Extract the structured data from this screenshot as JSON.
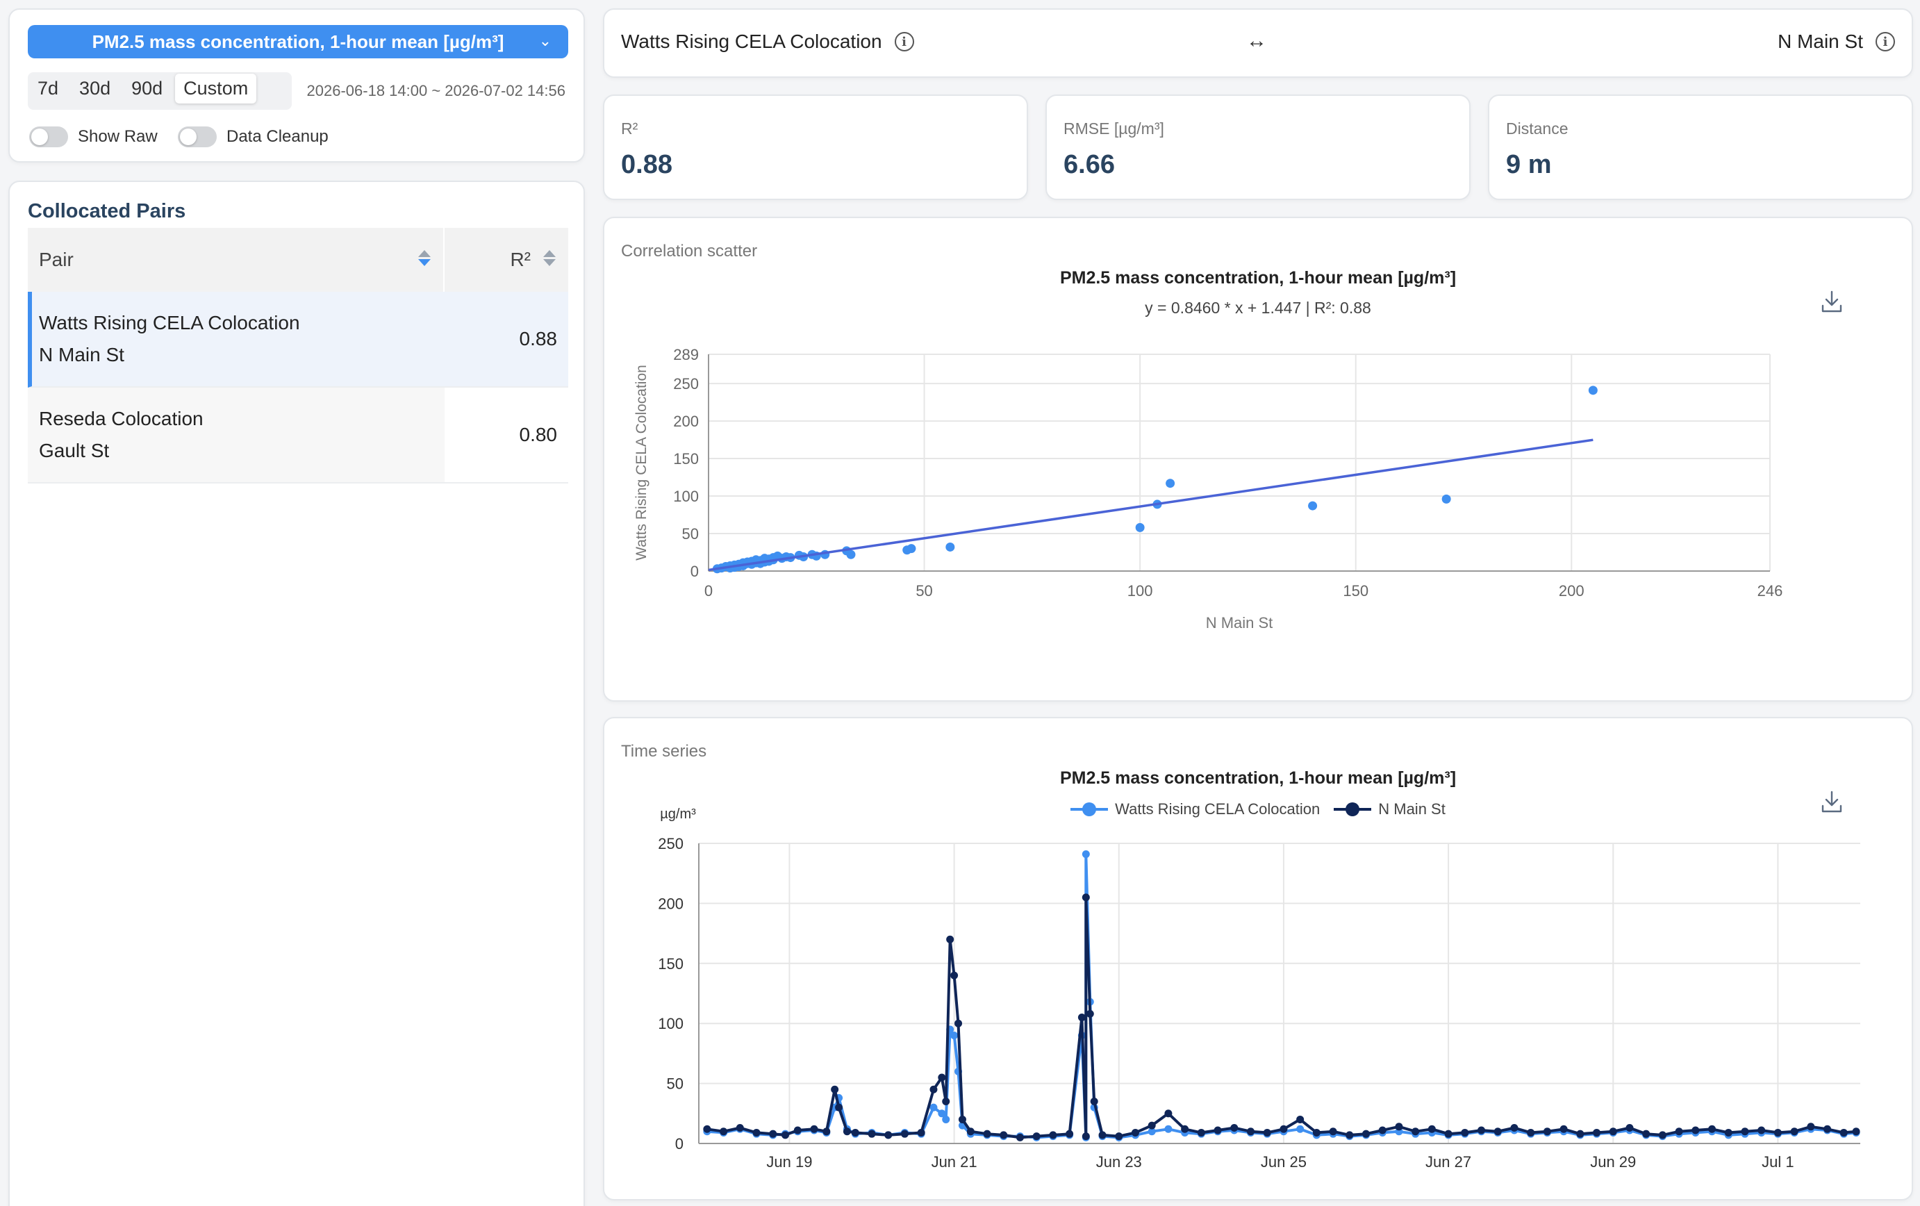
{
  "controls": {
    "metric": "PM2.5 mass concentration, 1-hour mean [µg/m³]",
    "ranges": [
      "7d",
      "30d",
      "90d",
      "Custom"
    ],
    "active_range": "Custom",
    "date_range": "2026-06-18 14:00 ~ 2026-07-02 14:56",
    "show_raw_label": "Show Raw",
    "data_cleanup_label": "Data Cleanup"
  },
  "pairs": {
    "title": "Collocated Pairs",
    "col_pair": "Pair",
    "col_r2": "R²",
    "rows": [
      {
        "a": "Watts Rising CELA Colocation",
        "b": "N Main St",
        "r2": "0.88",
        "selected": true
      },
      {
        "a": "Reseda Colocation",
        "b": "Gault St",
        "r2": "0.80",
        "selected": false
      }
    ]
  },
  "header": {
    "left": "Watts Rising CELA Colocation",
    "arrow": "↔",
    "right": "N Main St"
  },
  "stats": {
    "r2_label": "R²",
    "r2_value": "0.88",
    "rmse_label": "RMSE [µg/m³]",
    "rmse_value": "6.66",
    "dist_label": "Distance",
    "dist_value": "9 m"
  },
  "colors": {
    "series_a": "#3f8ff0",
    "series_b": "#0f2557",
    "fit": "#4a63d6",
    "grid": "#e6e6e6"
  },
  "scatter_card": {
    "label": "Correlation scatter",
    "title": "PM2.5 mass concentration, 1-hour mean [µg/m³]",
    "equation": "y = 0.8460 * x + 1.447 | R²: 0.88"
  },
  "ts_card": {
    "label": "Time series",
    "title": "PM2.5 mass concentration, 1-hour mean [µg/m³]",
    "unit": "µg/m³"
  },
  "chart_data": [
    {
      "type": "scatter",
      "xlabel": "N Main St",
      "ylabel": "Watts Rising CELA Colocation",
      "xlim": [
        0,
        246
      ],
      "ylim": [
        0,
        289
      ],
      "xticks": [
        0,
        50,
        100,
        150,
        200,
        246
      ],
      "yticks": [
        0,
        50,
        100,
        150,
        200,
        250,
        289
      ],
      "fit": {
        "slope": 0.846,
        "intercept": 1.447,
        "x_range": [
          0,
          205
        ]
      },
      "points": [
        [
          205,
          241
        ],
        [
          107,
          117
        ],
        [
          104,
          89
        ],
        [
          100,
          58
        ],
        [
          140,
          87
        ],
        [
          171,
          96
        ],
        [
          56,
          32
        ],
        [
          47,
          30
        ],
        [
          46,
          28
        ],
        [
          33,
          22
        ],
        [
          32,
          27
        ],
        [
          27,
          22
        ],
        [
          25,
          20
        ],
        [
          24,
          22
        ],
        [
          22,
          19
        ],
        [
          21,
          21
        ],
        [
          19,
          18
        ],
        [
          18,
          19
        ],
        [
          17,
          17
        ],
        [
          16,
          20
        ],
        [
          15,
          15
        ],
        [
          15,
          18
        ],
        [
          14,
          13
        ],
        [
          14,
          16
        ],
        [
          13,
          12
        ],
        [
          13,
          17
        ],
        [
          12,
          14
        ],
        [
          12,
          10
        ],
        [
          11,
          11
        ],
        [
          11,
          15
        ],
        [
          10,
          9
        ],
        [
          10,
          13
        ],
        [
          9,
          10
        ],
        [
          9,
          12
        ],
        [
          8,
          7
        ],
        [
          8,
          11
        ],
        [
          7,
          9
        ],
        [
          7,
          6
        ],
        [
          6,
          8
        ],
        [
          6,
          5
        ],
        [
          5,
          7
        ],
        [
          5,
          4
        ],
        [
          4,
          6
        ],
        [
          3,
          4
        ],
        [
          2,
          3
        ]
      ],
      "grid": true
    },
    {
      "type": "line",
      "x_tick_labels": [
        "Jun 19",
        "Jun 21",
        "Jun 23",
        "Jun 25",
        "Jun 27",
        "Jun 29",
        "Jul 1"
      ],
      "x_tick_days": [
        1,
        3,
        5,
        7,
        9,
        11,
        13
      ],
      "ylim": [
        0,
        250
      ],
      "yticks": [
        0,
        50,
        100,
        150,
        200,
        250
      ],
      "ylabel": "µg/m³",
      "legend_position": "top-center",
      "series": [
        {
          "name": "Watts Rising CELA Colocation",
          "x_days": [
            0.0,
            0.2,
            0.4,
            0.6,
            0.8,
            0.95,
            1.1,
            1.3,
            1.45,
            1.55,
            1.6,
            1.7,
            1.8,
            2.0,
            2.2,
            2.4,
            2.6,
            2.75,
            2.85,
            2.9,
            2.95,
            3.0,
            3.05,
            3.1,
            3.2,
            3.4,
            3.6,
            3.8,
            4.0,
            4.2,
            4.4,
            4.6,
            4.8,
            5.0,
            5.2,
            5.4,
            5.6,
            5.8,
            6.0,
            6.2,
            6.4,
            6.6,
            6.8,
            7.0,
            7.2,
            7.4,
            7.6,
            7.8,
            8.0,
            8.2,
            8.4,
            8.6,
            8.8,
            9.0,
            9.2,
            9.4,
            9.6,
            9.8,
            10.0,
            10.2,
            10.4,
            10.6,
            10.8,
            11.0,
            11.2,
            11.4,
            11.6,
            11.8,
            12.0,
            12.2,
            12.4,
            12.6,
            12.8,
            13.0,
            13.2,
            13.4,
            13.6,
            13.8,
            13.95
          ],
          "values": [
            10,
            9,
            12,
            8,
            7,
            8,
            10,
            11,
            9,
            30,
            38,
            12,
            8,
            9,
            7,
            9,
            8,
            30,
            25,
            20,
            95,
            90,
            60,
            15,
            8,
            7,
            6,
            6,
            5,
            6,
            7,
            5,
            6,
            5,
            7,
            10,
            12,
            9,
            8,
            10,
            11,
            9,
            8,
            10,
            12,
            7,
            8,
            6,
            7,
            9,
            10,
            8,
            9,
            7,
            8,
            10,
            9,
            11,
            8,
            9,
            10,
            7,
            8,
            9,
            11,
            7,
            6,
            8,
            9,
            10,
            7,
            8,
            9,
            8,
            9,
            12,
            11,
            8,
            9
          ]
        },
        {
          "name": "N Main St",
          "x_days": [
            0.0,
            0.2,
            0.4,
            0.6,
            0.8,
            0.95,
            1.1,
            1.3,
            1.45,
            1.55,
            1.6,
            1.7,
            1.8,
            2.0,
            2.2,
            2.4,
            2.6,
            2.75,
            2.85,
            2.9,
            2.95,
            3.0,
            3.05,
            3.1,
            3.2,
            3.4,
            3.6,
            3.8,
            4.0,
            4.2,
            4.4,
            4.6,
            4.8,
            5.0,
            5.2,
            5.4,
            5.6,
            5.8,
            6.0,
            6.2,
            6.4,
            6.6,
            6.8,
            7.0,
            7.2,
            7.4,
            7.6,
            7.8,
            8.0,
            8.2,
            8.4,
            8.6,
            8.8,
            9.0,
            9.2,
            9.4,
            9.6,
            9.8,
            10.0,
            10.2,
            10.4,
            10.6,
            10.8,
            11.0,
            11.2,
            11.4,
            11.6,
            11.8,
            12.0,
            12.2,
            12.4,
            12.6,
            12.8,
            13.0,
            13.2,
            13.4,
            13.6,
            13.8,
            13.95
          ],
          "values": [
            12,
            10,
            13,
            9,
            8,
            7,
            11,
            12,
            10,
            45,
            30,
            10,
            9,
            8,
            7,
            8,
            9,
            45,
            55,
            35,
            170,
            140,
            100,
            20,
            10,
            8,
            7,
            5,
            6,
            7,
            8,
            6,
            7,
            6,
            9,
            15,
            25,
            12,
            9,
            11,
            13,
            10,
            9,
            12,
            20,
            9,
            10,
            7,
            8,
            11,
            14,
            10,
            12,
            8,
            9,
            11,
            10,
            13,
            9,
            10,
            12,
            8,
            9,
            10,
            13,
            8,
            7,
            10,
            11,
            12,
            9,
            10,
            11,
            9,
            10,
            14,
            12,
            9,
            10
          ]
        },
        {
          "name": "Watts Rising CELA Colocation",
          "x_days": [
            4.55,
            4.6,
            4.65,
            4.7
          ],
          "values": [
            90,
            241,
            118,
            30
          ]
        },
        {
          "name": "N Main St",
          "x_days": [
            4.55,
            4.6,
            4.65,
            4.7
          ],
          "values": [
            105,
            205,
            108,
            35
          ]
        }
      ]
    }
  ]
}
